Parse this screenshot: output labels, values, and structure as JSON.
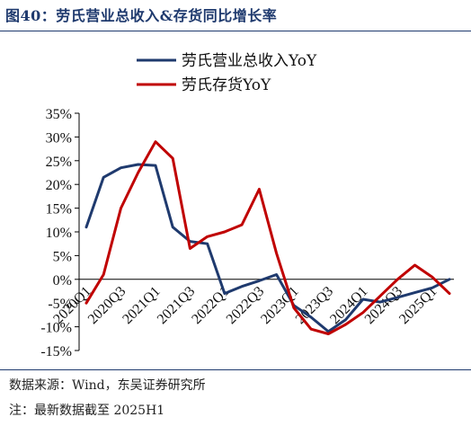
{
  "figure": {
    "title": "图40：劳氏营业总收入&存货同比增长率",
    "source": "数据来源：Wind，东吴证券研究所",
    "note": "注：最新数据截至 2025H1"
  },
  "chart_data": {
    "type": "line",
    "title": "",
    "xlabel": "",
    "ylabel": "",
    "x_tick_labels": [
      "2020Q1",
      "2020Q3",
      "2021Q1",
      "2021Q3",
      "2022Q1",
      "2022Q3",
      "2023Q1",
      "2023Q3",
      "2024Q1",
      "2024Q3",
      "2025Q1"
    ],
    "x": [
      "2020Q1",
      "2020Q2",
      "2020Q3",
      "2020Q4",
      "2021Q1",
      "2021Q2",
      "2021Q3",
      "2021Q4",
      "2022Q1",
      "2022Q2",
      "2022Q3",
      "2022Q4",
      "2023Q1",
      "2023Q2",
      "2023Q3",
      "2023Q4",
      "2024Q1",
      "2024Q2",
      "2024Q3",
      "2024Q4",
      "2025Q1",
      "2025Q2"
    ],
    "y_tick_labels": [
      "35%",
      "30%",
      "25%",
      "20%",
      "15%",
      "10%",
      "5%",
      "0%",
      "-5%",
      "-10%",
      "-15%"
    ],
    "ylim": [
      -15,
      35
    ],
    "y_unit": "%",
    "legend_position": "top",
    "grid": false,
    "series": [
      {
        "name": "劳氏营业总收入YoY",
        "color": "#1f3a6e",
        "values": [
          11.0,
          21.5,
          23.5,
          24.2,
          24.0,
          11.0,
          8.0,
          7.5,
          -3.0,
          -1.5,
          -0.3,
          1.0,
          -5.5,
          -8.0,
          -11.0,
          -8.5,
          -4.2,
          -4.8,
          -3.8,
          -2.8,
          -1.8,
          0.0
        ]
      },
      {
        "name": "劳氏存货YoY",
        "color": "#c00000",
        "values": [
          -5.0,
          1.0,
          15.0,
          22.5,
          29.0,
          25.5,
          6.5,
          9.0,
          10.0,
          11.5,
          19.0,
          5.5,
          -6.0,
          -10.5,
          -11.5,
          -9.5,
          -7.0,
          -3.5,
          0.0,
          3.0,
          0.5,
          -3.0
        ]
      }
    ]
  }
}
